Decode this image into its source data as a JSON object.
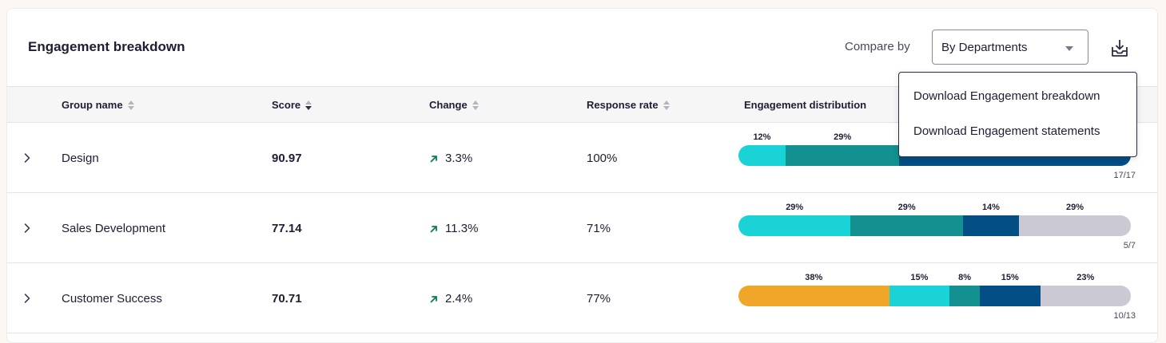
{
  "header": {
    "title": "Engagement breakdown",
    "compare_label": "Compare by",
    "compare_value": "By Departments"
  },
  "columns": {
    "group_name": "Group name",
    "score": "Score",
    "change": "Change",
    "response_rate": "Response rate",
    "distribution": "Engagement distribution"
  },
  "colors": {
    "orange": "#f0a628",
    "cyan": "#1ad3d6",
    "teal": "#129190",
    "navy": "#034e84",
    "gray": "#cbc9d4",
    "up_arrow": "#0b7a55"
  },
  "rows": [
    {
      "name": "Design",
      "score": "90.97",
      "change": "3.3%",
      "response_rate": "100%",
      "count": "17/17",
      "segments": [
        {
          "color": "cyan",
          "value": 12,
          "label": "12%"
        },
        {
          "color": "teal",
          "value": 29,
          "label": "29%"
        },
        {
          "color": "navy",
          "value": 59,
          "label": ""
        }
      ]
    },
    {
      "name": "Sales Development",
      "score": "77.14",
      "change": "11.3%",
      "response_rate": "71%",
      "count": "5/7",
      "segments": [
        {
          "color": "cyan",
          "value": 28.6,
          "label": "29%"
        },
        {
          "color": "teal",
          "value": 28.6,
          "label": "29%"
        },
        {
          "color": "navy",
          "value": 14.3,
          "label": "14%"
        },
        {
          "color": "gray",
          "value": 28.5,
          "label": "29%"
        }
      ]
    },
    {
      "name": "Customer Success",
      "score": "70.71",
      "change": "2.4%",
      "response_rate": "77%",
      "count": "10/13",
      "segments": [
        {
          "color": "orange",
          "value": 38.4,
          "label": "38%"
        },
        {
          "color": "cyan",
          "value": 15.4,
          "label": "15%"
        },
        {
          "color": "teal",
          "value": 7.7,
          "label": "8%"
        },
        {
          "color": "navy",
          "value": 15.4,
          "label": "15%"
        },
        {
          "color": "gray",
          "value": 23.1,
          "label": "23%"
        }
      ]
    }
  ],
  "download_menu": {
    "items": [
      "Download Engagement breakdown",
      "Download Engagement statements"
    ]
  }
}
